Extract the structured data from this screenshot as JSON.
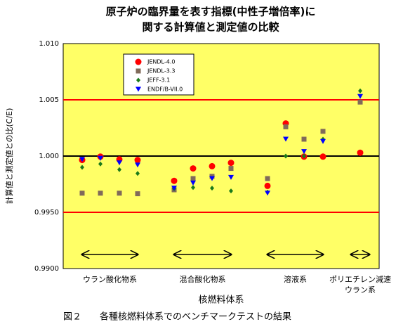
{
  "chart_data": {
    "type": "scatter",
    "title": [
      "原子炉の臨界量を表す指標(中性子増倍率)に",
      "関する計算値と測定値の比較"
    ],
    "y_label": "計算値と測定値との比(C/E)",
    "x_label": "核燃料体系",
    "caption": "図２　　各種核燃料体系でのベンチマークテストの結果",
    "groups": [
      "ウラン酸化物系",
      "混合酸化物系",
      "溶液系",
      "ポリエチレン減速\nウラン系"
    ],
    "xlim": [
      0,
      450
    ],
    "ylim": [
      0.99,
      1.01
    ],
    "yticks": [
      {
        "value": 1.01,
        "label": "1.010"
      },
      {
        "value": 1.005,
        "label": "1.005"
      },
      {
        "value": 1.0,
        "label": "1.000"
      },
      {
        "value": 0.995,
        "label": "0.9950"
      },
      {
        "value": 0.99,
        "label": "0.9900"
      }
    ],
    "reference_lines": [
      {
        "value": 1.005,
        "color": "#ff0000"
      },
      {
        "value": 1.0,
        "color": "#000000"
      },
      {
        "value": 0.995,
        "color": "#ff0000"
      }
    ],
    "background": "#ffff66",
    "x": [
      27,
      53,
      80,
      106,
      158,
      185,
      212,
      239,
      291,
      317,
      343,
      370,
      423
    ],
    "series": [
      {
        "name": "JENDL-4.0",
        "color": "#ff0000",
        "marker": "circle",
        "values": [
          0.99965,
          0.99995,
          0.9997,
          0.99965,
          0.9978,
          0.9989,
          0.9991,
          0.9994,
          0.99735,
          1.0029,
          0.99995,
          0.99995,
          1.0003
        ]
      },
      {
        "name": "JENDL-3.3",
        "color": "#806a5a",
        "marker": "square",
        "values": [
          0.9967,
          0.9967,
          0.9967,
          0.99665,
          0.997,
          0.998,
          0.9982,
          0.9989,
          0.998,
          1.0026,
          1.0015,
          1.0022,
          1.0048
        ]
      },
      {
        "name": "JEFF-3.1",
        "color": "#1a7a1a",
        "marker": "diamond",
        "values": [
          0.999,
          0.9993,
          0.9988,
          0.99845,
          0.9971,
          0.9972,
          0.99715,
          0.9969,
          0.9968,
          1.0,
          1.0,
          1.0015,
          1.0058
        ]
      },
      {
        "name": "ENDF/B-VII.0",
        "color": "#0000ff",
        "marker": "triangle-down",
        "values": [
          0.9997,
          0.9998,
          0.9994,
          0.9992,
          0.99715,
          0.9976,
          0.998,
          0.9981,
          0.9967,
          1.0015,
          1.0004,
          1.0013,
          1.0053
        ]
      }
    ]
  }
}
